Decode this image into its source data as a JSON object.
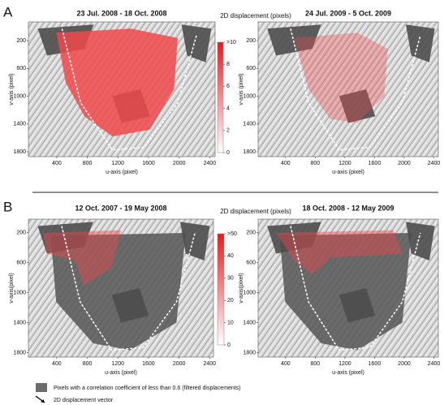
{
  "panels": [
    {
      "letter": "A",
      "colorbar_title": "2D displacement (pixels)",
      "colorbar_lim": [
        0,
        10
      ],
      "colorbar_ticks": [
        {
          "value": 10,
          "label": ">10"
        },
        8,
        6,
        4,
        2,
        0
      ],
      "maps": [
        {
          "title": "23 Jul. 2008 - 18 Oct. 2008",
          "x_label": "u-axis (pixel)",
          "y_label": "v-axis (pixel)",
          "xlim": [
            30,
            2470
          ],
          "ylim": [
            -70,
            1870
          ],
          "xticks": [
            400,
            800,
            1200,
            1600,
            2000,
            2400
          ],
          "yticks": [
            200,
            600,
            1000,
            1400,
            1800
          ]
        },
        {
          "title": "24 Jul. 2009 - 5 Oct. 2009",
          "x_label": "u-axis (pixel)",
          "y_label": "v-axis (pixel)",
          "xlim": [
            30,
            2460
          ],
          "ylim": [
            -70,
            1870
          ],
          "xticks": [
            400,
            800,
            1200,
            1600,
            2000,
            2400
          ],
          "yticks": [
            200,
            600,
            1000,
            1400,
            1800
          ]
        }
      ]
    },
    {
      "letter": "B",
      "colorbar_title": "2D displacement (pixels)",
      "colorbar_lim": [
        0,
        50
      ],
      "colorbar_ticks": [
        {
          "value": 50,
          "label": ">50"
        },
        40,
        30,
        20,
        10,
        0
      ],
      "maps": [
        {
          "title": "12 Oct. 2007 - 19 May 2008",
          "x_label": "u-axis (pixel)",
          "y_label": "v-axis(pixel)",
          "xlim": [
            30,
            2450
          ],
          "ylim": [
            20,
            1860
          ],
          "xticks": [
            400,
            800,
            1200,
            1600,
            2000,
            2400
          ],
          "yticks": [
            200,
            600,
            1000,
            1400,
            1800
          ]
        },
        {
          "title": "18 Oct. 2008 - 12 May 2009",
          "x_label": "u-axis (pixel)",
          "y_label": "v-axis(pixel)",
          "xlim": [
            30,
            2460
          ],
          "ylim": [
            20,
            1860
          ],
          "xticks": [
            400,
            800,
            1200,
            1600,
            2000,
            2400
          ],
          "yticks": [
            200,
            600,
            1000,
            1400,
            1800
          ]
        }
      ]
    }
  ],
  "legend": [
    {
      "label": "Pixels with a correlation coefficient of less than 0.6 (filtered displacements)"
    },
    {
      "label": "2D displacement vector"
    }
  ]
}
